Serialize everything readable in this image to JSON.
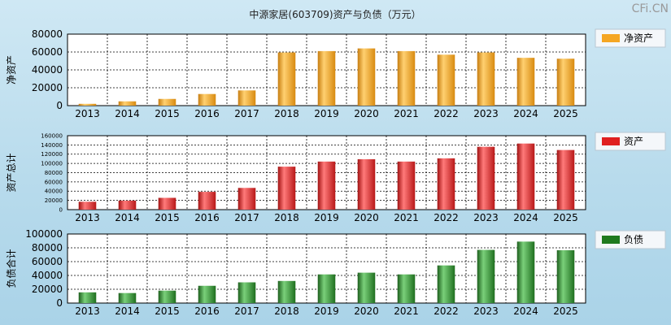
{
  "title": "中源家居(603709)资产与负债（万元）",
  "watermark": "CFi.CN",
  "chart_data": [
    {
      "type": "bar",
      "ylabel": "净资产",
      "ylim": [
        0,
        80000
      ],
      "yticks": [
        "0",
        "20000",
        "40000",
        "60000",
        "80000"
      ],
      "categories": [
        "2013",
        "2014",
        "2015",
        "2016",
        "2017",
        "2018",
        "2019",
        "2020",
        "2021",
        "2022",
        "2023",
        "2024",
        "2025"
      ],
      "series": [
        {
          "name": "净资产",
          "values": [
            2000,
            4800,
            7500,
            13000,
            17000,
            59500,
            61000,
            64000,
            61000,
            57000,
            59500,
            53500,
            52500
          ]
        }
      ],
      "color": "#f5a623",
      "legend_position": "right"
    },
    {
      "type": "bar",
      "ylabel": "资产总计",
      "ylim": [
        0,
        160000
      ],
      "yticks": [
        "0",
        "20000",
        "40000",
        "60000",
        "80000",
        "100000",
        "120000",
        "140000",
        "160000"
      ],
      "categories": [
        "2013",
        "2014",
        "2015",
        "2016",
        "2017",
        "2018",
        "2019",
        "2020",
        "2021",
        "2022",
        "2023",
        "2024",
        "2025"
      ],
      "series": [
        {
          "name": "资产",
          "values": [
            17000,
            19500,
            25500,
            38500,
            47000,
            93000,
            104000,
            109000,
            104000,
            111000,
            136000,
            143000,
            129000
          ]
        }
      ],
      "color": "#e02020",
      "legend_position": "right"
    },
    {
      "type": "bar",
      "ylabel": "负债合计",
      "ylim": [
        0,
        100000
      ],
      "yticks": [
        "0",
        "20000",
        "40000",
        "60000",
        "80000",
        "100000"
      ],
      "categories": [
        "2013",
        "2014",
        "2015",
        "2016",
        "2017",
        "2018",
        "2019",
        "2020",
        "2021",
        "2022",
        "2023",
        "2024",
        "2025"
      ],
      "series": [
        {
          "name": "负债",
          "values": [
            15500,
            14500,
            18000,
            25000,
            30000,
            32000,
            41500,
            44000,
            41500,
            54500,
            77000,
            89000,
            76500
          ]
        }
      ],
      "color": "#1f7a1f",
      "legend_position": "right"
    }
  ]
}
